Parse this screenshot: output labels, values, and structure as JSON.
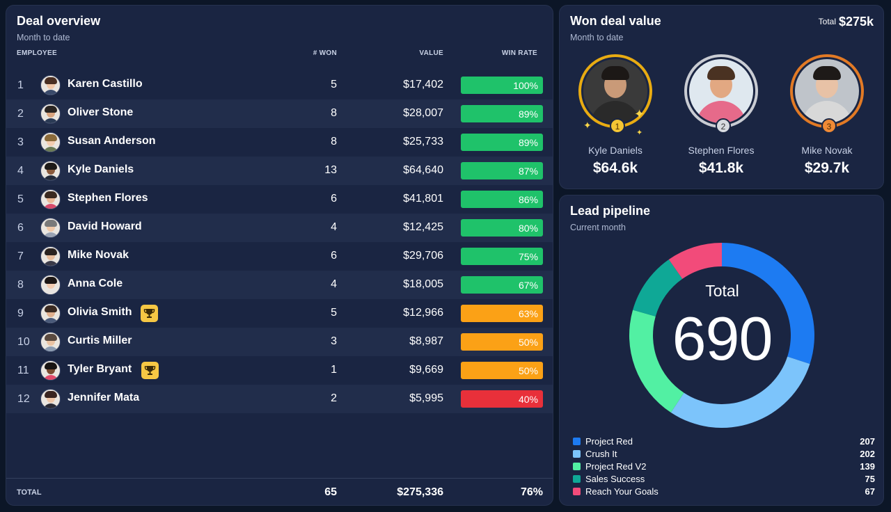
{
  "deal_overview": {
    "title": "Deal overview",
    "subtitle": "Month to date",
    "columns": {
      "employee": "EMPLOYEE",
      "won": "# WON",
      "value": "VALUE",
      "win_rate": "WIN RATE"
    },
    "rows": [
      {
        "rank": "1",
        "name": "Karen Castillo",
        "won": "5",
        "value": "$17,402",
        "win_rate": "100%",
        "rate_color": "#1fc26a",
        "trophy": false
      },
      {
        "rank": "2",
        "name": "Oliver Stone",
        "won": "8",
        "value": "$28,007",
        "win_rate": "89%",
        "rate_color": "#1fc26a",
        "trophy": false
      },
      {
        "rank": "3",
        "name": "Susan Anderson",
        "won": "8",
        "value": "$25,733",
        "win_rate": "89%",
        "rate_color": "#1fc26a",
        "trophy": false
      },
      {
        "rank": "4",
        "name": "Kyle Daniels",
        "won": "13",
        "value": "$64,640",
        "win_rate": "87%",
        "rate_color": "#1fc26a",
        "trophy": false
      },
      {
        "rank": "5",
        "name": "Stephen Flores",
        "won": "6",
        "value": "$41,801",
        "win_rate": "86%",
        "rate_color": "#1fc26a",
        "trophy": false
      },
      {
        "rank": "6",
        "name": "David Howard",
        "won": "4",
        "value": "$12,425",
        "win_rate": "80%",
        "rate_color": "#1fc26a",
        "trophy": false
      },
      {
        "rank": "7",
        "name": "Mike Novak",
        "won": "6",
        "value": "$29,706",
        "win_rate": "75%",
        "rate_color": "#1fc26a",
        "trophy": false
      },
      {
        "rank": "8",
        "name": "Anna Cole",
        "won": "4",
        "value": "$18,005",
        "win_rate": "67%",
        "rate_color": "#1fc26a",
        "trophy": false
      },
      {
        "rank": "9",
        "name": "Olivia Smith",
        "won": "5",
        "value": "$12,966",
        "win_rate": "63%",
        "rate_color": "#fba116",
        "trophy": true
      },
      {
        "rank": "10",
        "name": "Curtis Miller",
        "won": "3",
        "value": "$8,987",
        "win_rate": "50%",
        "rate_color": "#fba116",
        "trophy": false
      },
      {
        "rank": "11",
        "name": "Tyler Bryant",
        "won": "1",
        "value": "$9,669",
        "win_rate": "50%",
        "rate_color": "#fba116",
        "trophy": true
      },
      {
        "rank": "12",
        "name": "Jennifer Mata",
        "won": "2",
        "value": "$5,995",
        "win_rate": "40%",
        "rate_color": "#e8303a",
        "trophy": false
      }
    ],
    "total": {
      "label": "TOTAL",
      "won": "65",
      "value": "$275,336",
      "win_rate": "76%"
    }
  },
  "won_deal_value": {
    "title": "Won deal value",
    "subtitle": "Month to date",
    "total_label": "Total",
    "total_value": "$275k",
    "winners": [
      {
        "medal": "1",
        "name": "Kyle Daniels",
        "value": "$64.6k",
        "ring_color": "#e8ab12",
        "medal_color": "#f4c534"
      },
      {
        "medal": "2",
        "name": "Stephen Flores",
        "value": "$41.8k",
        "ring_color": "#c9ccd3",
        "medal_color": "#d7dae0"
      },
      {
        "medal": "3",
        "name": "Mike Novak",
        "value": "$29.7k",
        "ring_color": "#e27a25",
        "medal_color": "#f08a35"
      }
    ]
  },
  "lead_pipeline": {
    "title": "Lead pipeline",
    "subtitle": "Current month",
    "total_label": "Total",
    "total_value": "690"
  },
  "chart_data": {
    "type": "pie",
    "title": "Lead pipeline",
    "categories": [
      "Project Red",
      "Crush It",
      "Project Red V2",
      "Sales Success",
      "Reach Your Goals"
    ],
    "values": [
      207,
      202,
      139,
      75,
      67
    ],
    "colors": [
      "#1d7bf2",
      "#7cc4fb",
      "#52f0a3",
      "#0fa896",
      "#f24b7a"
    ],
    "legend": "bottom"
  }
}
